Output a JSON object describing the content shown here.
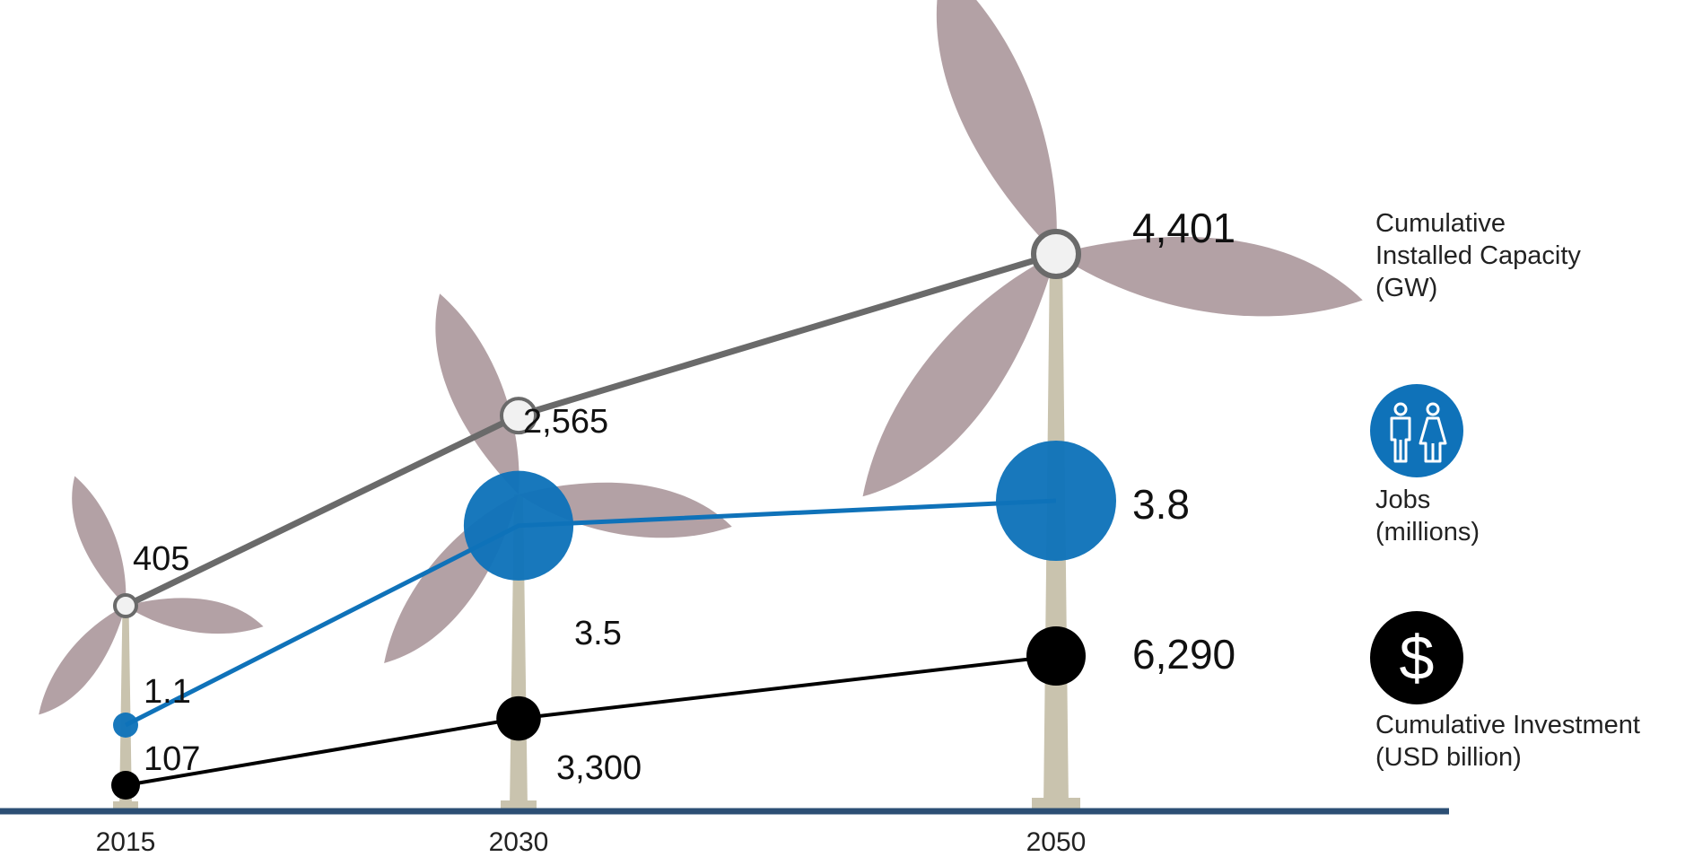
{
  "chart_data": {
    "type": "line",
    "categories": [
      "2015",
      "2030",
      "2050"
    ],
    "series": [
      {
        "name": "Cumulative Installed Capacity (GW)",
        "key": "capacity",
        "values": [
          405,
          2565,
          4401
        ],
        "labels": [
          "405",
          "2,565",
          "4,401"
        ],
        "color": "#6a6a6a"
      },
      {
        "name": "Jobs (millions)",
        "key": "jobs",
        "values": [
          1.1,
          3.5,
          3.8
        ],
        "labels": [
          "1.1",
          "3.5",
          "3.8"
        ],
        "color": "#0f72b9"
      },
      {
        "name": "Cumulative Investment (USD billion)",
        "key": "investment",
        "values": [
          107,
          3300,
          6290
        ],
        "labels": [
          "107",
          "3,300",
          "6,290"
        ],
        "color": "#000000"
      }
    ],
    "legend": {
      "capacity": [
        "Cumulative",
        "Installed Capacity",
        "(GW)"
      ],
      "jobs": [
        "Jobs",
        "(millions)"
      ],
      "investment": [
        "Cumulative Investment",
        "(USD billion)"
      ]
    },
    "icons": {
      "jobs": "people-icon",
      "investment": "dollar-icon"
    },
    "colors": {
      "blade": "#b3a1a5",
      "tower": "#c9c3ae",
      "ground": "#2c4f74",
      "hub_fill": "#f1f1f1"
    }
  }
}
